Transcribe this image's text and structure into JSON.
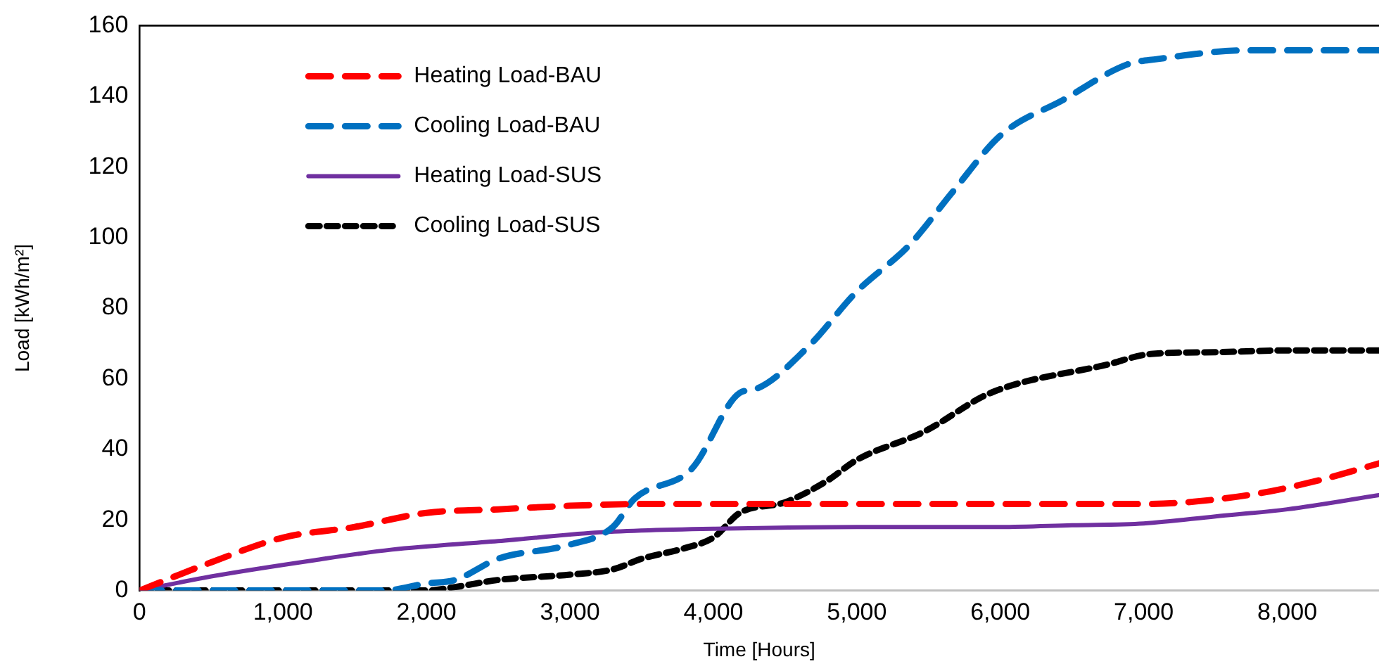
{
  "chart_data": {
    "type": "line",
    "xlabel": "Time [Hours]",
    "ylabel": "Load [kWh/m²]",
    "xlim": [
      0,
      8640
    ],
    "xticks": [
      0,
      {
        "value": 1000,
        "label": "1,000"
      },
      {
        "value": 2000,
        "label": "2,000"
      },
      {
        "value": 3000,
        "label": "3,000"
      },
      {
        "value": 4000,
        "label": "4,000"
      },
      {
        "value": 5000,
        "label": "5,000"
      },
      {
        "value": 6000,
        "label": "6,000"
      },
      {
        "value": 7000,
        "label": "7,000"
      },
      {
        "value": 8000,
        "label": "8,000"
      }
    ],
    "ylim": [
      0,
      160
    ],
    "yticks": [
      0,
      20,
      40,
      60,
      80,
      100,
      120,
      140,
      160
    ],
    "grid": false,
    "legend": "top left",
    "marker": "none",
    "x": [
      0,
      500,
      1000,
      1500,
      2000,
      2500,
      3000,
      3500,
      4000,
      4500,
      5000,
      5500,
      6000,
      6500,
      7000,
      7300,
      7800,
      8200,
      8640
    ],
    "series": [
      {
        "name": "Heating Load-BAU",
        "color": "#ff0000",
        "line_style": "dashed",
        "values": [
          0,
          8,
          15,
          18,
          22,
          23,
          24,
          24.5,
          24.5,
          24.5,
          24.5,
          24.5,
          24.5,
          24.5,
          24.5,
          25,
          27.5,
          31,
          36
        ]
      },
      {
        "name": "Cooling Load-BAU",
        "color": "#0070c0",
        "line_style": "dashed",
        "x": [
          0,
          1700,
          2000,
          2200,
          2500,
          3000,
          3300,
          3450,
          3850,
          4185,
          4290,
          4660,
          4995,
          5370,
          5670,
          6005,
          6440,
          6885,
          7090,
          7725,
          8640
        ],
        "values": [
          0,
          0,
          2,
          3,
          9,
          13,
          18,
          26,
          34.5,
          56,
          57,
          69,
          84.5,
          98,
          113,
          129,
          139,
          149,
          150.5,
          153,
          153
        ]
      },
      {
        "name": "Heating Load-SUS",
        "color": "#7030a0",
        "line_style": "solid",
        "x": [
          0,
          500,
          1220,
          1760,
          2500,
          3175,
          3500,
          4000,
          5000,
          6000,
          6500,
          7000,
          7500,
          8000,
          8640
        ],
        "values": [
          0,
          4,
          8.6,
          11.6,
          14,
          16.4,
          17,
          17.5,
          18,
          18,
          18.5,
          19,
          21,
          23,
          27
        ]
      },
      {
        "name": "Cooling Load-SUS",
        "color": "#000000",
        "line_style": "dotted",
        "x": [
          0,
          2000,
          2200,
          2500,
          3000,
          3300,
          3500,
          3800,
          4000,
          4185,
          4500,
          4790,
          5000,
          5470,
          5935,
          6745,
          7050,
          7500,
          8000,
          8640
        ],
        "values": [
          0,
          0,
          1,
          3,
          4.5,
          6,
          9,
          12,
          15,
          22,
          25,
          31,
          37,
          45,
          56,
          64,
          67,
          67.5,
          68,
          68
        ]
      }
    ]
  }
}
